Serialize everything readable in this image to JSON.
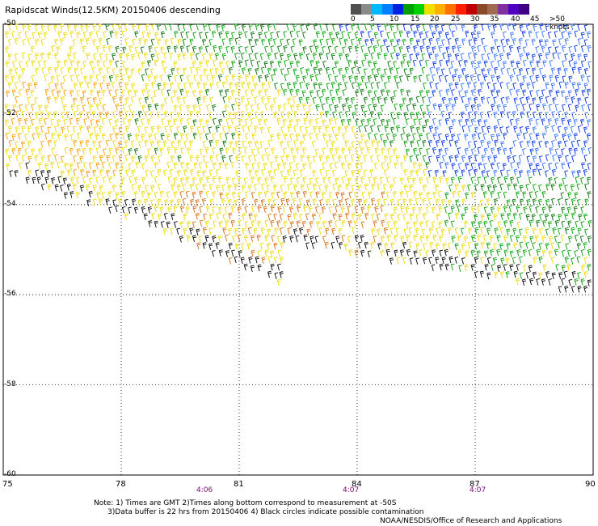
{
  "title": "Rapidscat Winds(12.5KM) 20150406 descending",
  "legend": {
    "colors": [
      "#505050",
      "#8a8a8a",
      "#00b8ff",
      "#0080ff",
      "#0020e0",
      "#00a000",
      "#00d000",
      "#f0e000",
      "#ffb000",
      "#ff7000",
      "#ff2000",
      "#c00000",
      "#8a4a2a",
      "#a06a50",
      "#8030a0",
      "#5000c0",
      "#400080"
    ],
    "labels": [
      "0",
      "5",
      "10",
      "15",
      "20",
      "25",
      "30",
      "35",
      "40",
      "45",
      ">50 knots"
    ]
  },
  "lat_labels": [
    "-50",
    "-52",
    "-54",
    "-56",
    "-58",
    "-60"
  ],
  "lon_labels": [
    "75",
    "78",
    "81",
    "84",
    "87",
    "90"
  ],
  "time_labels": [
    "4:06",
    "4:07",
    "4:07"
  ],
  "notes": {
    "line1": "Note: 1) Times are GMT 2)Times along bottom correspond to measurement at -50S",
    "line2": "      3)Data buffer is 22 hrs from 20150406 4) Black circles indicate possible contamination",
    "credit": "NOAA/NESDIS/Office of Research and Applications"
  },
  "map_data": {
    "lon_range": [
      75,
      90
    ],
    "lat_range": [
      -60,
      -50
    ],
    "grid": true,
    "speed_colors": {
      "black": "#000000",
      "yellow": "#f0d800",
      "orange": "#ff9a00",
      "darkorange": "#d86a10",
      "green": "#00a000",
      "darkgreen": "#007000",
      "blue": "#0030e0",
      "lightblue": "#3070ff"
    }
  }
}
